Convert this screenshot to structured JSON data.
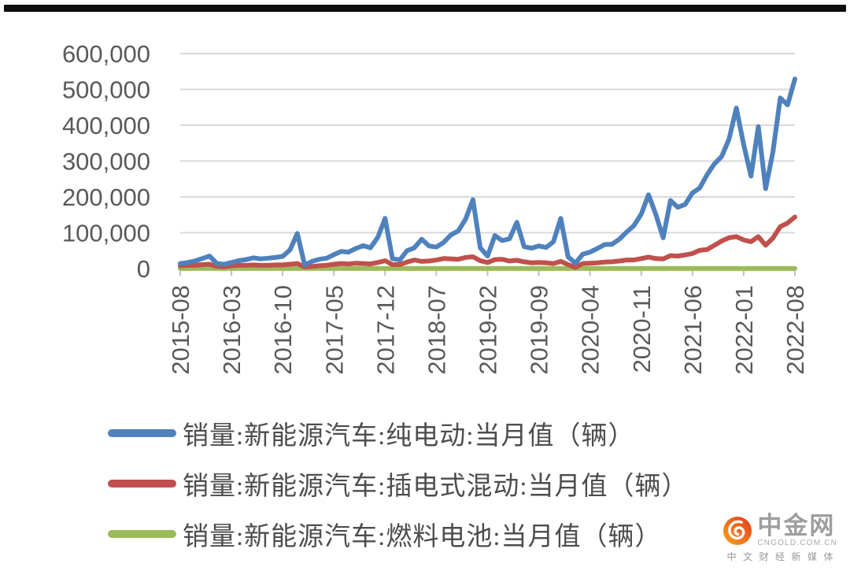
{
  "chart_data": {
    "type": "line",
    "title": "",
    "xlabel": "",
    "ylabel": "",
    "x_start": "2015-08",
    "x_end": "2022-08",
    "x_tick_step_months": 7,
    "x_ticks": [
      "2015-08",
      "2016-03",
      "2016-10",
      "2017-05",
      "2017-12",
      "2018-07",
      "2019-02",
      "2019-09",
      "2020-04",
      "2020-11",
      "2021-06",
      "2022-01",
      "2022-08"
    ],
    "ylim": [
      0,
      600000
    ],
    "y_tick_interval": 100000,
    "y_ticks": [
      "0",
      "100,000",
      "200,000",
      "300,000",
      "400,000",
      "500,000",
      "600,000"
    ],
    "grid": "horizontal",
    "legend_position": "bottom-left",
    "axis_text_color": "#595959",
    "gridline_color": "#d9d9d9",
    "series": [
      {
        "name": "销量:新能源汽车:纯电动:当月值（辆）",
        "color": "#4F81BD",
        "values": [
          14000,
          17000,
          21000,
          28000,
          35000,
          14000,
          12000,
          17000,
          22000,
          25000,
          30000,
          27000,
          29000,
          31000,
          34000,
          52000,
          98000,
          10000,
          20000,
          26000,
          29000,
          39000,
          48000,
          46000,
          56000,
          64000,
          58000,
          87000,
          140000,
          28000,
          24000,
          50000,
          58000,
          82000,
          63000,
          60000,
          73000,
          94000,
          105000,
          138000,
          192000,
          58000,
          35000,
          92000,
          78000,
          83000,
          129000,
          61000,
          57000,
          63000,
          59000,
          75000,
          140000,
          33000,
          15000,
          40000,
          46000,
          56000,
          67000,
          68000,
          82000,
          102000,
          120000,
          152000,
          206000,
          151000,
          86000,
          190000,
          171000,
          179000,
          211000,
          225000,
          262000,
          292000,
          313000,
          361000,
          448000,
          346000,
          258000,
          396000,
          223000,
          326000,
          476000,
          457000,
          529000
        ]
      },
      {
        "name": "销量:新能源汽车:插电式混动:当月值（辆）",
        "color": "#C0504D",
        "values": [
          8000,
          9000,
          9000,
          11000,
          12000,
          6000,
          5000,
          8000,
          9000,
          9000,
          10000,
          9000,
          9000,
          10000,
          10000,
          12000,
          14000,
          4000,
          6000,
          8000,
          9000,
          12000,
          14000,
          13000,
          15000,
          14000,
          13000,
          17000,
          22000,
          11000,
          11000,
          18000,
          24000,
          20000,
          21000,
          24000,
          28000,
          27000,
          26000,
          31000,
          33000,
          22000,
          17000,
          25000,
          26000,
          21000,
          23000,
          19000,
          16000,
          17000,
          16000,
          14000,
          20000,
          11000,
          3000,
          14000,
          15000,
          16000,
          18000,
          19000,
          21000,
          24000,
          24000,
          28000,
          32000,
          28000,
          27000,
          36000,
          35000,
          38000,
          42000,
          51000,
          53000,
          65000,
          77000,
          86000,
          89000,
          80000,
          75000,
          89000,
          65000,
          85000,
          117000,
          127000,
          144000
        ]
      },
      {
        "name": "销量:新能源汽车:燃料电池:当月值（辆）",
        "color": "#9BBB59",
        "values": [
          300,
          300,
          300,
          300,
          300,
          300,
          300,
          300,
          300,
          300,
          300,
          300,
          300,
          300,
          300,
          300,
          300,
          300,
          300,
          300,
          300,
          300,
          300,
          300,
          300,
          300,
          300,
          300,
          300,
          300,
          300,
          300,
          300,
          300,
          300,
          300,
          300,
          300,
          300,
          300,
          300,
          300,
          300,
          300,
          300,
          300,
          300,
          300,
          300,
          300,
          300,
          300,
          300,
          300,
          300,
          300,
          300,
          300,
          300,
          300,
          300,
          300,
          300,
          300,
          300,
          300,
          300,
          300,
          300,
          300,
          300,
          300,
          300,
          300,
          300,
          300,
          300,
          300,
          300,
          300,
          300,
          300,
          300,
          300,
          300
        ]
      }
    ]
  },
  "logo": {
    "brand": "中金网",
    "domain": "CNGOLD.COM.CN",
    "tagline": "中文财经新媒体"
  }
}
